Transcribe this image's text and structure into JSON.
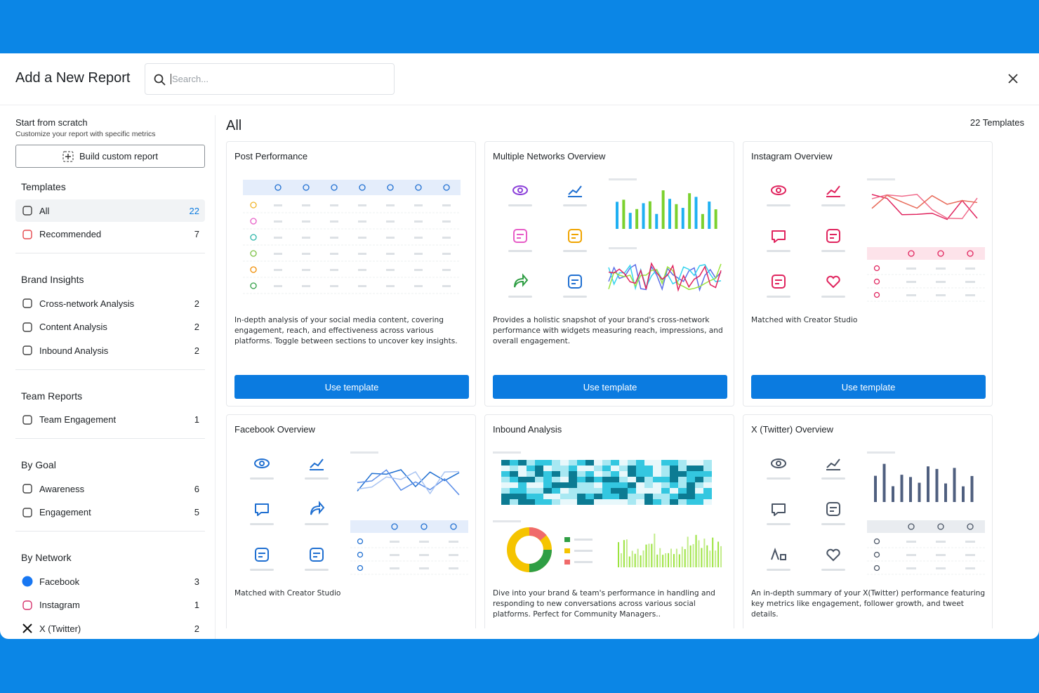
{
  "header": {
    "title": "Add a New Report",
    "search_placeholder": "Search..."
  },
  "sidebar": {
    "scratch": {
      "title": "Start from scratch",
      "subtitle": "Customize your report with specific metrics",
      "button": "Build custom report"
    },
    "sections": [
      {
        "heading": "Templates",
        "items": [
          {
            "label": "All",
            "count": 22
          },
          {
            "label": "Recommended",
            "count": 7
          }
        ]
      },
      {
        "heading": "Brand Insights",
        "items": [
          {
            "label": "Cross-network Analysis",
            "count": 2
          },
          {
            "label": "Content Analysis",
            "count": 2
          },
          {
            "label": "Inbound Analysis",
            "count": 2
          }
        ]
      },
      {
        "heading": "Team Reports",
        "items": [
          {
            "label": "Team Engagement",
            "count": 1
          }
        ]
      },
      {
        "heading": "By Goal",
        "items": [
          {
            "label": "Awareness",
            "count": 6
          },
          {
            "label": "Engagement",
            "count": 5
          }
        ]
      },
      {
        "heading": "By Network",
        "items": [
          {
            "label": "Facebook",
            "count": 3
          },
          {
            "label": "Instagram",
            "count": 1
          },
          {
            "label": "X (Twitter)",
            "count": 2
          }
        ]
      }
    ]
  },
  "main": {
    "heading": "All",
    "count_label": "22 Templates",
    "cards": [
      {
        "title": "Post Performance",
        "description": "In-depth analysis of your social media content, covering engagement, reach, and effectiveness across various platforms. Toggle between sections to uncover key insights.",
        "button": "Use template"
      },
      {
        "title": "Multiple Networks Overview",
        "description": "Provides a holistic snapshot of your brand's cross-network performance with widgets measuring reach, impressions, and overall engagement.",
        "button": "Use template"
      },
      {
        "title": "Instagram Overview",
        "description": "Matched with Creator Studio",
        "button": "Use template"
      },
      {
        "title": "Facebook Overview",
        "description": "Matched with Creator Studio"
      },
      {
        "title": "Inbound Analysis",
        "description": "Dive into your brand & team's performance in handling and responding to new conversations across various social platforms. Perfect for Community Managers.."
      },
      {
        "title": "X (Twitter) Overview",
        "description": "An in-depth summary of your X(Twitter) performance featuring key metrics like engagement, follower growth, and tweet details."
      }
    ]
  }
}
